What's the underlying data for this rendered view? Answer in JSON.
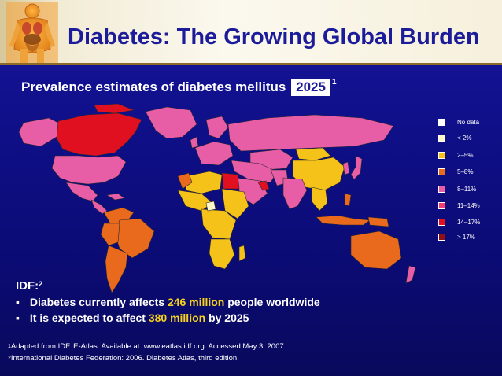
{
  "slide": {
    "title": "Diabetes: The Growing Global Burden",
    "subtitle_prefix": "Prevalence estimates of diabetes mellitus",
    "subtitle_year": "2025",
    "subtitle_footnote_mark": "1"
  },
  "legend": [
    {
      "label": "No data",
      "color": "#ffffff"
    },
    {
      "label": "< 2%",
      "color": "#fff8c8"
    },
    {
      "label": "2–5%",
      "color": "#f5c21a"
    },
    {
      "label": "5–8%",
      "color": "#ea6a1d"
    },
    {
      "label": "8–11%",
      "color": "#e85ea6"
    },
    {
      "label": "11–14%",
      "color": "#f03c78"
    },
    {
      "label": "14–17%",
      "color": "#e01020"
    },
    {
      "label": "> 17%",
      "color": "#8c0f1a"
    }
  ],
  "idf": {
    "heading": "IDF:",
    "heading_mark": "2",
    "bullet_glyph": "▪",
    "bullet1_before": "Diabetes currently affects",
    "bullet1_highlight": "246 million",
    "bullet1_after": "people worldwide",
    "bullet2_before": "It is expected to affect",
    "bullet2_highlight": "380 million",
    "bullet2_after": "by 2025"
  },
  "footnotes": [
    {
      "mark": "1",
      "text": "Adapted from IDF. E-Atlas. Available at: www.eatlas.idf.org. Accessed May 3, 2007."
    },
    {
      "mark": "2",
      "text": "International Diabetes Federation: 2006. Diabetes Atlas, third edition."
    }
  ],
  "colors": {
    "background": "#0f0f88",
    "title_text": "#1c1c9a",
    "highlight": "#f7d21d",
    "no_data": "#ffffff",
    "lt2": "#fff8c8",
    "c2_5": "#f5c21a",
    "c5_8": "#ea6a1d",
    "c8_11": "#e85ea6",
    "c11_14": "#f03c78",
    "c14_17": "#e01020",
    "gt17": "#8c0f1a"
  }
}
